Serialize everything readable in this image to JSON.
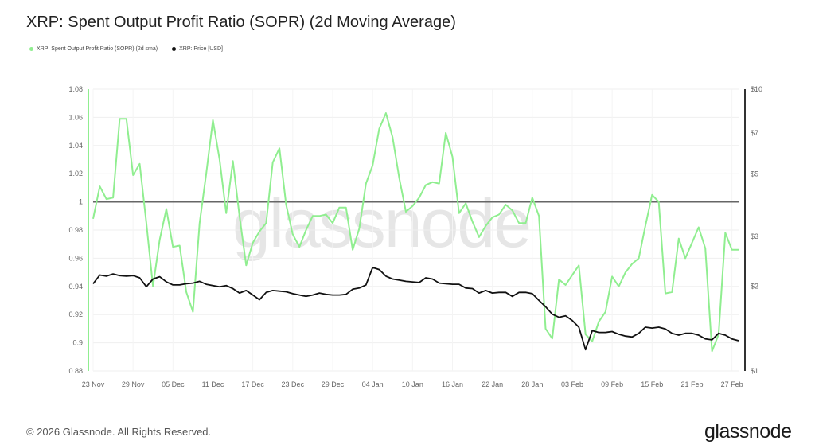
{
  "header": {
    "title": "XRP: Spent Output Profit Ratio (SOPR) (2d Moving Average)"
  },
  "legend": {
    "items": [
      {
        "label": "XRP: Spent Output Profit Ratio (SOPR) (2d sma)",
        "color": "#90ee90"
      },
      {
        "label": "XRP: Price [USD]",
        "color": "#111111"
      }
    ]
  },
  "watermark": "glassnode",
  "footer": {
    "copyright": "© 2026 Glassnode. All Rights Reserved.",
    "brand": "glassnode"
  },
  "chart_data": {
    "type": "line",
    "title": "XRP: Spent Output Profit Ratio (SOPR) (2d Moving Average)",
    "x_tick_labels": [
      "23 Nov",
      "29 Nov",
      "05 Dec",
      "11 Dec",
      "17 Dec",
      "23 Dec",
      "29 Dec",
      "04 Jan",
      "10 Jan",
      "16 Jan",
      "22 Jan",
      "28 Jan",
      "03 Feb",
      "09 Feb",
      "15 Feb",
      "21 Feb",
      "27 Feb"
    ],
    "x_tick_day_index": [
      0,
      6,
      12,
      18,
      24,
      30,
      36,
      42,
      48,
      54,
      60,
      66,
      72,
      78,
      84,
      90,
      96
    ],
    "y_left": {
      "min": 0.88,
      "max": 1.08,
      "ticks": [
        0.88,
        0.9,
        0.92,
        0.94,
        0.96,
        0.98,
        1,
        1.02,
        1.04,
        1.06,
        1.08
      ],
      "tick_labels": [
        "0.88",
        "0.9",
        "0.92",
        "0.94",
        "0.96",
        "0.98",
        "1",
        "1.02",
        "1.04",
        "1.06",
        "1.08"
      ]
    },
    "y_right": {
      "scale": "log",
      "min": 1,
      "max": 10,
      "ticks": [
        1,
        2,
        3,
        5,
        7,
        10
      ],
      "tick_labels": [
        "$1",
        "$2",
        "$3",
        "$5",
        "$7",
        "$10"
      ]
    },
    "reference_line": {
      "axis": "left",
      "value": 1
    },
    "series": [
      {
        "name": "XRP: Spent Output Profit Ratio (SOPR) (2d sma)",
        "axis": "left",
        "color": "#90ee90",
        "x": [
          0,
          1,
          2,
          3,
          4,
          5,
          6,
          7,
          8,
          9,
          10,
          11,
          12,
          13,
          14,
          15,
          16,
          17,
          18,
          19,
          20,
          21,
          22,
          23,
          24,
          25,
          26,
          27,
          28,
          29,
          30,
          31,
          32,
          33,
          34,
          35,
          36,
          37,
          38,
          39,
          40,
          41,
          42,
          43,
          44,
          45,
          46,
          47,
          48,
          49,
          50,
          51,
          52,
          53,
          54,
          55,
          56,
          57,
          58,
          59,
          60,
          61,
          62,
          63,
          64,
          65,
          66,
          67,
          68,
          69,
          70,
          71,
          72,
          73,
          74,
          75,
          76,
          77,
          78,
          79,
          80,
          81,
          82,
          83,
          84,
          85,
          86,
          87,
          88,
          89,
          90,
          91,
          92,
          93,
          94,
          95,
          96,
          97
        ],
        "values": [
          0.988,
          1.011,
          1.002,
          1.003,
          1.059,
          1.059,
          1.019,
          1.027,
          0.985,
          0.94,
          0.973,
          0.995,
          0.968,
          0.969,
          0.936,
          0.922,
          0.985,
          1.02,
          1.058,
          1.03,
          0.992,
          1.029,
          0.99,
          0.955,
          0.971,
          0.979,
          0.985,
          1.028,
          1.038,
          0.998,
          0.977,
          0.968,
          0.98,
          0.99,
          0.99,
          0.991,
          0.985,
          0.996,
          0.996,
          0.966,
          0.981,
          1.013,
          1.026,
          1.052,
          1.063,
          1.046,
          1.017,
          0.993,
          0.997,
          1.003,
          1.012,
          1.014,
          1.013,
          1.049,
          1.032,
          0.992,
          0.999,
          0.986,
          0.975,
          0.983,
          0.989,
          0.991,
          0.998,
          0.994,
          0.985,
          0.985,
          1.003,
          0.99,
          0.91,
          0.903,
          0.945,
          0.941,
          0.948,
          0.955,
          0.906,
          0.901,
          0.915,
          0.922,
          0.947,
          0.94,
          0.95,
          0.956,
          0.96,
          0.983,
          1.005,
          1.0,
          0.935,
          0.936,
          0.974,
          0.96,
          0.971,
          0.982,
          0.967,
          0.894,
          0.906,
          0.978,
          0.966,
          0.966
        ]
      },
      {
        "name": "XRP: Price [USD]",
        "axis": "right",
        "color": "#111111",
        "x": [
          0,
          1,
          2,
          3,
          4,
          5,
          6,
          7,
          8,
          9,
          10,
          11,
          12,
          13,
          14,
          15,
          16,
          17,
          18,
          19,
          20,
          21,
          22,
          23,
          24,
          25,
          26,
          27,
          28,
          29,
          30,
          31,
          32,
          33,
          34,
          35,
          36,
          37,
          38,
          39,
          40,
          41,
          42,
          43,
          44,
          45,
          46,
          47,
          48,
          49,
          50,
          51,
          52,
          53,
          54,
          55,
          56,
          57,
          58,
          59,
          60,
          61,
          62,
          63,
          64,
          65,
          66,
          67,
          68,
          69,
          70,
          71,
          72,
          73,
          74,
          75,
          76,
          77,
          78,
          79,
          80,
          81,
          82,
          83,
          84,
          85,
          86,
          87,
          88,
          89,
          90,
          91,
          92,
          93,
          94,
          95,
          96,
          97
        ],
        "values": [
          2.04,
          2.19,
          2.17,
          2.21,
          2.18,
          2.17,
          2.18,
          2.14,
          1.99,
          2.12,
          2.16,
          2.07,
          2.02,
          2.02,
          2.04,
          2.05,
          2.08,
          2.03,
          2.01,
          1.99,
          2.01,
          1.96,
          1.89,
          1.93,
          1.86,
          1.79,
          1.9,
          1.93,
          1.92,
          1.91,
          1.88,
          1.86,
          1.84,
          1.86,
          1.89,
          1.87,
          1.86,
          1.86,
          1.87,
          1.95,
          1.97,
          2.02,
          2.33,
          2.29,
          2.17,
          2.12,
          2.1,
          2.08,
          2.07,
          2.06,
          2.14,
          2.12,
          2.05,
          2.04,
          2.03,
          2.03,
          1.97,
          1.96,
          1.89,
          1.93,
          1.89,
          1.9,
          1.9,
          1.84,
          1.9,
          1.9,
          1.88,
          1.78,
          1.69,
          1.59,
          1.55,
          1.57,
          1.51,
          1.43,
          1.19,
          1.39,
          1.37,
          1.37,
          1.38,
          1.35,
          1.33,
          1.32,
          1.36,
          1.43,
          1.42,
          1.43,
          1.41,
          1.36,
          1.34,
          1.36,
          1.36,
          1.34,
          1.3,
          1.29,
          1.36,
          1.34,
          1.3,
          1.28
        ]
      }
    ]
  }
}
